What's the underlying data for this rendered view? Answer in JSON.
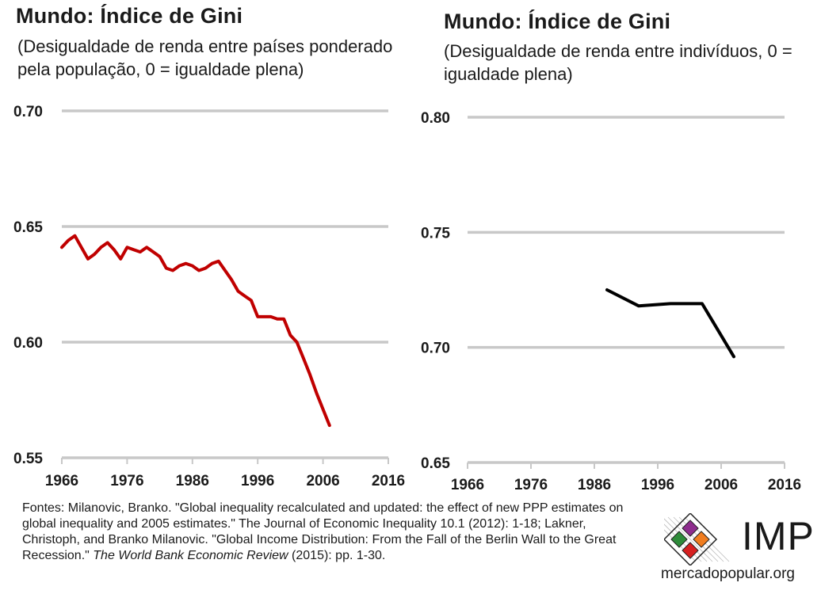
{
  "chart_data": [
    {
      "type": "line",
      "title": "Mundo: Índice de Gini",
      "subtitle": "(Desigualdade de renda entre países ponderado pela população, 0 = igualdade plena)",
      "xlabel": "",
      "ylabel": "",
      "xlim": [
        1966,
        2016
      ],
      "ylim": [
        0.55,
        0.7
      ],
      "x_ticks": [
        "1966",
        "1976",
        "1986",
        "1996",
        "2006",
        "2016"
      ],
      "y_ticks": [
        "0.55",
        "0.60",
        "0.65",
        "0.70"
      ],
      "grid": true,
      "series": [
        {
          "color": "#c00000",
          "x": [
            1966,
            1967,
            1968,
            1969,
            1970,
            1971,
            1972,
            1973,
            1974,
            1975,
            1976,
            1977,
            1978,
            1979,
            1980,
            1981,
            1982,
            1983,
            1984,
            1985,
            1986,
            1987,
            1988,
            1989,
            1990,
            1991,
            1992,
            1993,
            1994,
            1995,
            1996,
            1997,
            1998,
            1999,
            2000,
            2001,
            2002,
            2003,
            2004,
            2005,
            2006,
            2007
          ],
          "values": [
            0.641,
            0.644,
            0.646,
            0.641,
            0.636,
            0.638,
            0.641,
            0.643,
            0.64,
            0.636,
            0.641,
            0.64,
            0.639,
            0.641,
            0.639,
            0.637,
            0.632,
            0.631,
            0.633,
            0.634,
            0.633,
            0.631,
            0.632,
            0.634,
            0.635,
            0.631,
            0.627,
            0.622,
            0.62,
            0.618,
            0.611,
            0.611,
            0.611,
            0.61,
            0.61,
            0.603,
            0.6,
            0.593,
            0.586,
            0.578,
            0.571,
            0.564
          ]
        }
      ]
    },
    {
      "type": "line",
      "title": "Mundo: Índice de Gini",
      "subtitle": "(Desigualdade de renda entre indivíduos, 0 = igualdade plena)",
      "xlabel": "",
      "ylabel": "",
      "xlim": [
        1966,
        2016
      ],
      "ylim": [
        0.65,
        0.8
      ],
      "x_ticks": [
        "1966",
        "1976",
        "1986",
        "1996",
        "2006",
        "2016"
      ],
      "y_ticks": [
        "0.65",
        "0.70",
        "0.75",
        "0.80"
      ],
      "grid": true,
      "series": [
        {
          "color": "#000000",
          "x": [
            1988,
            1993,
            1998,
            2003,
            2008
          ],
          "values": [
            0.725,
            0.718,
            0.719,
            0.719,
            0.696
          ]
        }
      ]
    }
  ],
  "footer": {
    "text": "Fontes: Milanovic, Branko. \"Global inequality recalculated and updated: the effect of new PPP estimates on global inequality and 2005 estimates.\" The Journal of Economic Inequality 10.1 (2012): 1-18;  Lakner, Christoph, and Branko Milanovic. \"Global Income Distribution: From the Fall of the Berlin Wall to the Great Recession.\" ",
    "journal": "The World Bank Economic Review",
    "tail": " (2015): pp. 1-30."
  },
  "logo": {
    "text": "IMP",
    "url": "mercadopopular.org",
    "colors": [
      "#8e2d8e",
      "#2e8b3a",
      "#f07d20",
      "#d62020"
    ]
  },
  "colors": {
    "grid": "#c8c8c8",
    "axis": "#c8c8c8"
  }
}
